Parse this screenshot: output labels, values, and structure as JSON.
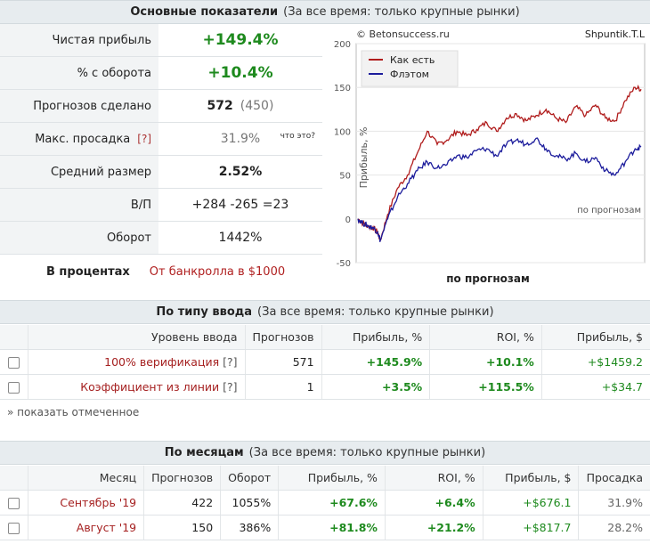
{
  "main_header": {
    "title": "Основные показатели",
    "subtitle": "(За все время: только крупные рынки)"
  },
  "stats": {
    "net_profit": {
      "label": "Чистая прибыль",
      "value": "+149.4%"
    },
    "turnover_pct": {
      "label": "% с оборота",
      "value": "+10.4%"
    },
    "predictions": {
      "label": "Прогнозов сделано",
      "value": "572",
      "secondary": "(450)"
    },
    "drawdown": {
      "label": "Макс. просадка",
      "qmark": "[?]",
      "value": "31.9%",
      "whatis": "что это?"
    },
    "avg_size": {
      "label": "Средний размер",
      "value": "2.52%"
    },
    "wl": {
      "label": "В/П",
      "value": "+284 -265 =23"
    },
    "turnover": {
      "label": "Оборот",
      "value": "1442%"
    }
  },
  "mode": {
    "percent": "В процентах",
    "bankroll": "От банкролла в $1000"
  },
  "chart_data": {
    "type": "line",
    "source": "© Betonsuccess.ru",
    "user": "Shpuntik.T.L",
    "ylabel": "Прибыль, %",
    "xlabel": "по прогнозам",
    "inner_label": "по прогнозам",
    "ylim": [
      -50,
      200
    ],
    "yticks": [
      -50,
      0,
      50,
      100,
      150,
      200
    ],
    "legend_position": "top-left",
    "series": [
      {
        "name": "Как есть",
        "color": "#b01c1c",
        "x": [
          0,
          10,
          20,
          30,
          40,
          45,
          60,
          80,
          100,
          120,
          140,
          160,
          180,
          200,
          220,
          240,
          260,
          280,
          300,
          320,
          340,
          360,
          380,
          400,
          420,
          440,
          460,
          480,
          500,
          520,
          540,
          560,
          572
        ],
        "values": [
          0,
          -5,
          -8,
          -10,
          -15,
          -25,
          5,
          35,
          50,
          75,
          100,
          85,
          90,
          100,
          95,
          102,
          110,
          100,
          115,
          120,
          112,
          118,
          125,
          115,
          110,
          128,
          118,
          130,
          115,
          112,
          135,
          150,
          148
        ]
      },
      {
        "name": "Флэтом",
        "color": "#1c1c9c",
        "x": [
          0,
          10,
          20,
          30,
          40,
          45,
          60,
          80,
          100,
          120,
          140,
          160,
          180,
          200,
          220,
          240,
          260,
          280,
          300,
          320,
          340,
          360,
          380,
          400,
          420,
          440,
          460,
          480,
          500,
          520,
          540,
          560,
          572
        ],
        "values": [
          0,
          -5,
          -8,
          -10,
          -15,
          -25,
          0,
          25,
          40,
          55,
          65,
          58,
          62,
          72,
          70,
          78,
          80,
          72,
          85,
          90,
          85,
          92,
          80,
          72,
          68,
          75,
          65,
          70,
          55,
          50,
          65,
          80,
          82
        ]
      }
    ]
  },
  "input_type": {
    "header": {
      "title": "По типу ввода",
      "subtitle": "(За все время: только крупные рынки)"
    },
    "columns": [
      "Уровень ввода",
      "Прогнозов",
      "Прибыль, %",
      "ROI, %",
      "Прибыль, $"
    ],
    "rows": [
      {
        "level": "100% верификация",
        "qmark": "[?]",
        "count": "571",
        "profit_pct": "+145.9%",
        "roi": "+10.1%",
        "profit_usd": "+$1459.2"
      },
      {
        "level": "Коэффициент из линии",
        "qmark": "[?]",
        "count": "1",
        "profit_pct": "+3.5%",
        "roi": "+115.5%",
        "profit_usd": "+$34.7"
      }
    ],
    "show_marked": "» показать отмеченное"
  },
  "by_month": {
    "header": {
      "title": "По месяцам",
      "subtitle": "(За все время: только крупные рынки)"
    },
    "columns": [
      "Месяц",
      "Прогнозов",
      "Оборот",
      "Прибыль, %",
      "ROI, %",
      "Прибыль, $",
      "Просадка"
    ],
    "rows": [
      {
        "month": "Сентябрь '19",
        "count": "422",
        "turnover": "1055%",
        "profit_pct": "+67.6%",
        "roi": "+6.4%",
        "profit_usd": "+$676.1",
        "drawdown": "31.9%"
      },
      {
        "month": "Август '19",
        "count": "150",
        "turnover": "386%",
        "profit_pct": "+81.8%",
        "roi": "+21.2%",
        "profit_usd": "+$817.7",
        "drawdown": "28.2%"
      }
    ]
  }
}
